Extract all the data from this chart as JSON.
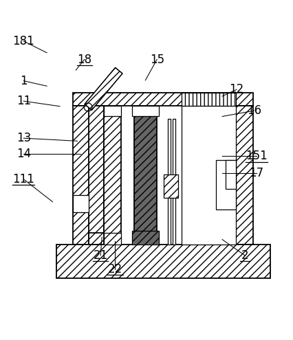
{
  "bg_color": "#ffffff",
  "line_color": "#000000",
  "underlined_labels": [
    "18",
    "111",
    "21",
    "22",
    "2",
    "151"
  ],
  "font_size": 12,
  "leaders": {
    "181": [
      0.155,
      0.905,
      0.075,
      0.945
    ],
    "18": [
      0.255,
      0.845,
      0.285,
      0.882
    ],
    "15": [
      0.495,
      0.81,
      0.535,
      0.882
    ],
    "1": [
      0.155,
      0.79,
      0.075,
      0.808
    ],
    "12": [
      0.76,
      0.755,
      0.81,
      0.778
    ],
    "11": [
      0.2,
      0.72,
      0.075,
      0.738
    ],
    "16": [
      0.76,
      0.685,
      0.87,
      0.705
    ],
    "13": [
      0.26,
      0.6,
      0.075,
      0.61
    ],
    "14": [
      0.27,
      0.555,
      0.075,
      0.555
    ],
    "151": [
      0.76,
      0.548,
      0.878,
      0.548
    ],
    "111": [
      0.175,
      0.39,
      0.075,
      0.468
    ],
    "17": [
      0.76,
      0.49,
      0.878,
      0.49
    ],
    "21": [
      0.345,
      0.268,
      0.34,
      0.205
    ],
    "22": [
      0.39,
      0.255,
      0.39,
      0.158
    ],
    "2": [
      0.76,
      0.26,
      0.838,
      0.205
    ]
  }
}
